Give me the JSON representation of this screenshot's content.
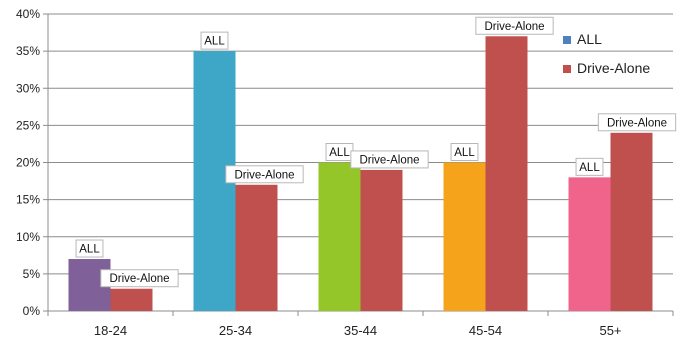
{
  "chart_data": {
    "type": "bar",
    "categories": [
      "18-24",
      "25-34",
      "35-44",
      "45-54",
      "55+"
    ],
    "series": [
      {
        "name": "ALL",
        "values": [
          7,
          35,
          20,
          20,
          18
        ],
        "point_colors": [
          "#7f6098",
          "#3ea6c6",
          "#95c629",
          "#f5a31b",
          "#f0648b"
        ],
        "legend_color": "#4f81bd"
      },
      {
        "name": "Drive-Alone",
        "values": [
          3,
          17,
          19,
          37,
          24
        ],
        "color": "#c0504d"
      }
    ],
    "data_labels": {
      "ALL": [
        "ALL",
        "ALL",
        "ALL",
        "ALL",
        "ALL"
      ],
      "Drive-Alone": [
        "Drive-Alone",
        "Drive-Alone",
        "Drive-Alone",
        "Drive-Alone",
        "Drive-Alone"
      ]
    },
    "ylim": [
      0,
      40
    ],
    "yticks": [
      0,
      5,
      10,
      15,
      20,
      25,
      30,
      35,
      40
    ],
    "ytick_labels": [
      "0%",
      "5%",
      "10%",
      "15%",
      "20%",
      "25%",
      "30%",
      "35%",
      "40%"
    ],
    "title": "",
    "xlabel": "",
    "ylabel": "",
    "grid": true,
    "legend_position": "top-right"
  }
}
